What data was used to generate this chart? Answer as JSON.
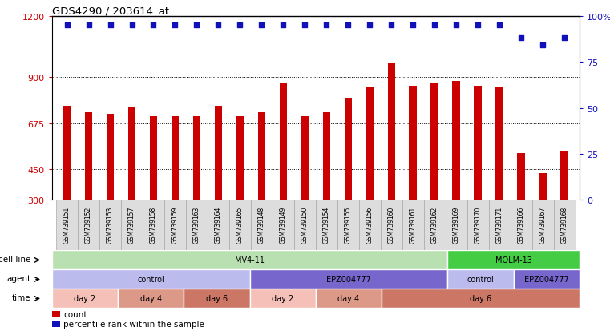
{
  "title": "GDS4290 / 203614_at",
  "samples": [
    "GSM739151",
    "GSM739152",
    "GSM739153",
    "GSM739157",
    "GSM739158",
    "GSM739159",
    "GSM739163",
    "GSM739164",
    "GSM739165",
    "GSM739148",
    "GSM739149",
    "GSM739150",
    "GSM739154",
    "GSM739155",
    "GSM739156",
    "GSM739160",
    "GSM739161",
    "GSM739162",
    "GSM739169",
    "GSM739170",
    "GSM739171",
    "GSM739166",
    "GSM739167",
    "GSM739168"
  ],
  "bar_values": [
    760,
    730,
    720,
    755,
    710,
    710,
    710,
    760,
    710,
    730,
    870,
    710,
    730,
    800,
    850,
    970,
    860,
    870,
    880,
    860,
    850,
    530,
    430,
    540
  ],
  "percentile_values": [
    95,
    95,
    95,
    95,
    95,
    95,
    95,
    95,
    95,
    95,
    95,
    95,
    95,
    95,
    95,
    95,
    95,
    95,
    95,
    95,
    95,
    88,
    84,
    88
  ],
  "bar_color": "#cc0000",
  "dot_color": "#1111bb",
  "ylim_left": [
    300,
    1200
  ],
  "ylim_right": [
    0,
    100
  ],
  "yticks_left": [
    300,
    450,
    675,
    900,
    1200
  ],
  "yticks_right": [
    0,
    25,
    50,
    75,
    100
  ],
  "grid_lines": [
    450,
    675,
    900
  ],
  "cell_line_groups": [
    {
      "label": "MV4-11",
      "start": 0,
      "end": 18,
      "color": "#b8e0b0"
    },
    {
      "label": "MOLM-13",
      "start": 18,
      "end": 24,
      "color": "#44cc44"
    }
  ],
  "agent_groups": [
    {
      "label": "control",
      "start": 0,
      "end": 9,
      "color": "#bbbbee"
    },
    {
      "label": "EPZ004777",
      "start": 9,
      "end": 18,
      "color": "#7766cc"
    },
    {
      "label": "control",
      "start": 18,
      "end": 21,
      "color": "#bbbbee"
    },
    {
      "label": "EPZ004777",
      "start": 21,
      "end": 24,
      "color": "#7766cc"
    }
  ],
  "time_groups": [
    {
      "label": "day 2",
      "start": 0,
      "end": 3,
      "color": "#f5c0b8"
    },
    {
      "label": "day 4",
      "start": 3,
      "end": 6,
      "color": "#dd9988"
    },
    {
      "label": "day 6",
      "start": 6,
      "end": 9,
      "color": "#cc7766"
    },
    {
      "label": "day 2",
      "start": 9,
      "end": 12,
      "color": "#f5c0b8"
    },
    {
      "label": "day 4",
      "start": 12,
      "end": 15,
      "color": "#dd9988"
    },
    {
      "label": "day 6",
      "start": 15,
      "end": 24,
      "color": "#cc7766"
    }
  ],
  "row_labels": [
    "cell line",
    "agent",
    "time"
  ],
  "legend_items": [
    {
      "color": "#cc0000",
      "label": "count"
    },
    {
      "color": "#1111bb",
      "label": "percentile rank within the sample"
    }
  ]
}
